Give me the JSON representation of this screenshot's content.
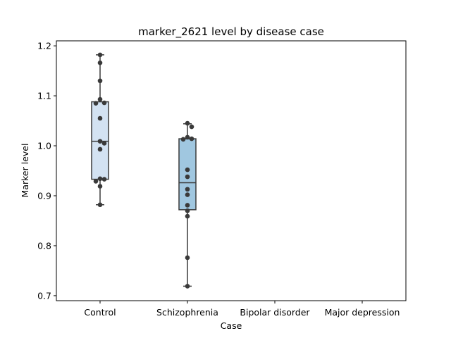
{
  "chart_data": {
    "type": "box",
    "title": "marker_2621 level by disease case",
    "xlabel": "Case",
    "ylabel": "Marker level",
    "ylim": [
      0.69,
      1.21
    ],
    "yticks": [
      "0.7",
      "0.8",
      "0.9",
      "1.0",
      "1.1",
      "1.2"
    ],
    "categories": [
      "Control",
      "Schizophrenia",
      "Bipolar disorder",
      "Major depression"
    ],
    "box_colors": [
      "#d3e2f2",
      "#a0c7e0"
    ],
    "point_color": "#3a3a3a",
    "boxes": [
      {
        "category": "Control",
        "whisker_low": 0.882,
        "q1": 0.933,
        "median": 1.009,
        "q3": 1.088,
        "whisker_high": 1.182,
        "points": [
          1.182,
          1.166,
          1.13,
          1.093,
          1.086,
          1.085,
          1.055,
          1.009,
          1.005,
          0.993,
          0.934,
          0.933,
          0.929,
          0.919,
          0.882
        ]
      },
      {
        "category": "Schizophrenia",
        "whisker_low": 0.719,
        "q1": 0.872,
        "median": 0.926,
        "q3": 1.014,
        "whisker_high": 1.044,
        "points": [
          1.045,
          1.038,
          1.017,
          1.014,
          1.013,
          0.952,
          0.938,
          0.913,
          0.902,
          0.881,
          0.87,
          0.859,
          0.776,
          0.719
        ]
      }
    ]
  }
}
